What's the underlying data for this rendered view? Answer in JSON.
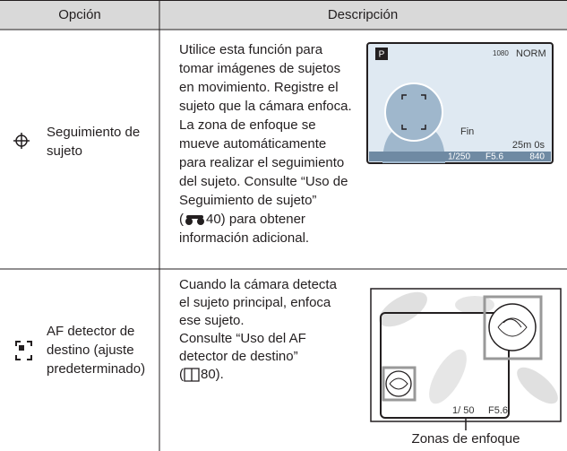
{
  "table": {
    "header": [
      "Opción",
      "Descripción"
    ],
    "rows": [
      {
        "option_lines": [
          "Seguimiento de",
          "sujeto"
        ],
        "description_lines": [
          "Utilice esta función para",
          "tomar imágenes de sujetos",
          "en movimiento. Registre el",
          "sujeto que la cámara enfoca.",
          "La zona de enfoque se",
          "mueve automáticamente",
          "para realizar el seguimiento",
          "del sujeto. Consulte “Uso de",
          "Seguimiento de sujeto”"
        ],
        "reference": {
          "before": "(",
          "after": "40) para obtener"
        },
        "description_end": "información adicional.",
        "screen": {
          "mode": "P",
          "resolution": "1080",
          "quality": "NORM",
          "af": "Fin",
          "time": "25m 0s",
          "shutter": "1/250",
          "aperture": "F5.6",
          "shots": "840"
        }
      },
      {
        "option_lines": [
          "AF detector de",
          "destino (ajuste",
          "predeterminado)"
        ],
        "description_lines": [
          "Cuando la cámara detecta",
          "el sujeto principal, enfoca",
          "ese sujeto.",
          "Consulte “Uso del AF",
          "detector de destino”"
        ],
        "reference": {
          "before": "(",
          "after": "80)."
        },
        "screen": {
          "shutter": "1/ 50",
          "aperture": "F5.6",
          "callout": "Zonas de enfoque"
        }
      }
    ]
  }
}
